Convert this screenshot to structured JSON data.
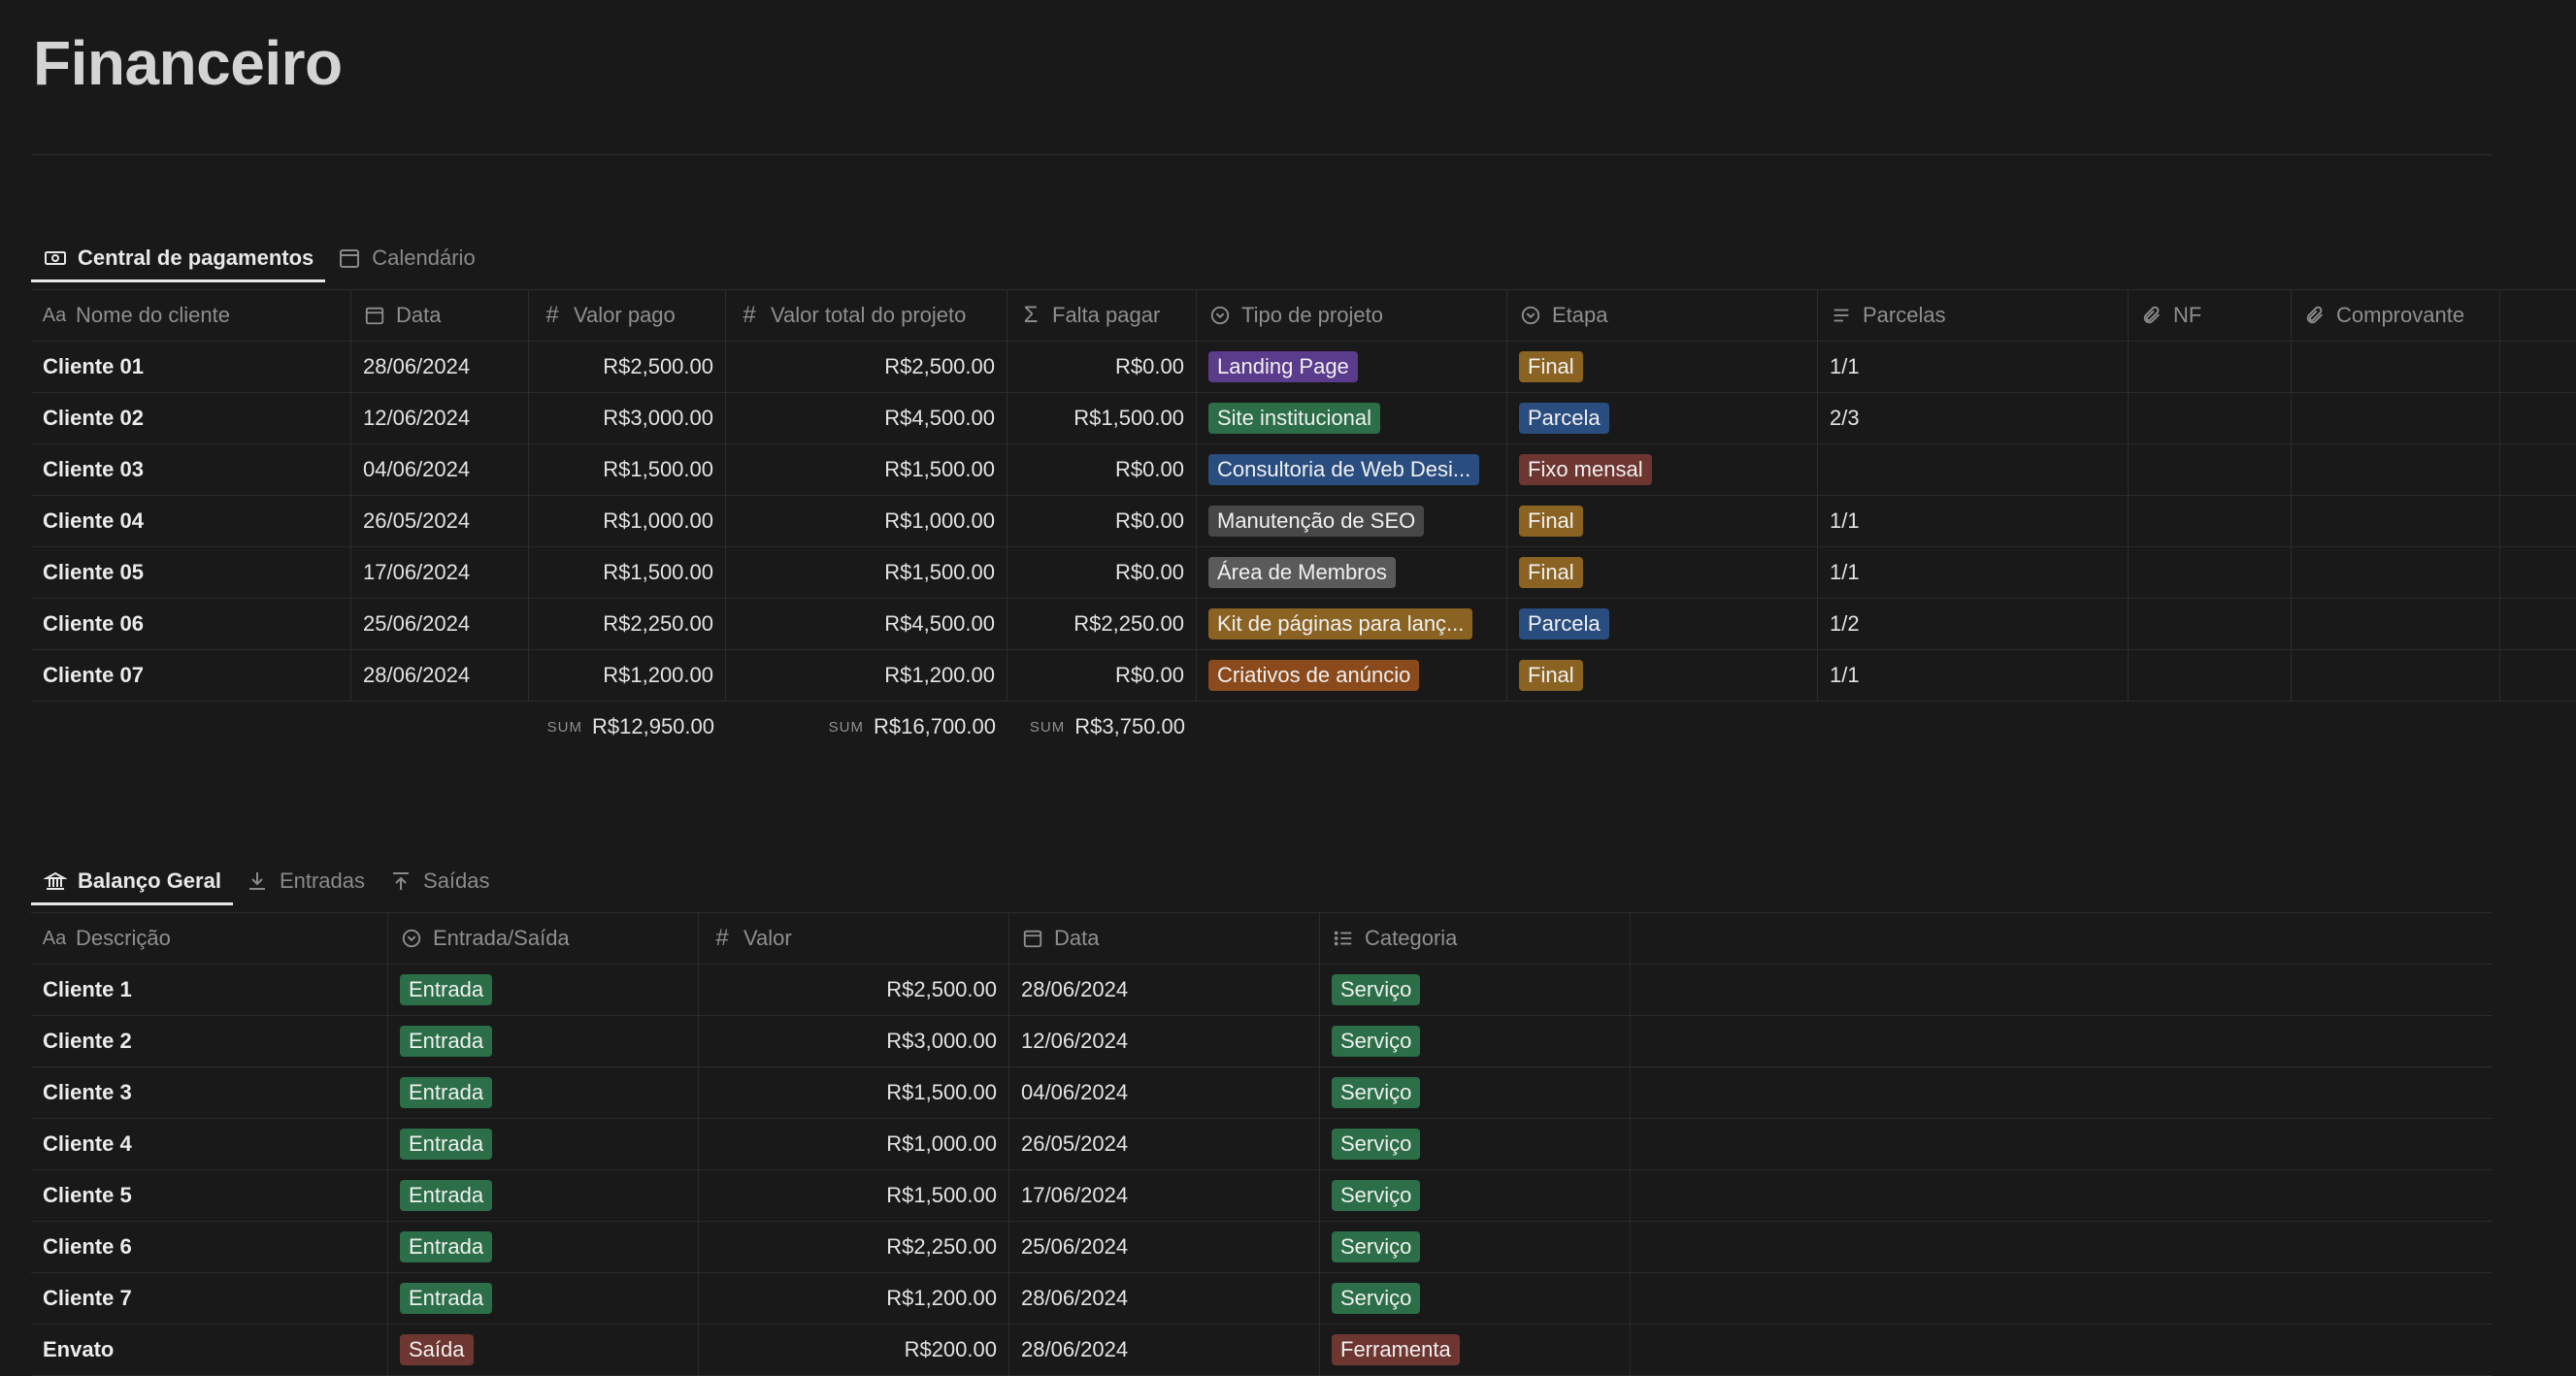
{
  "page": {
    "title": "Financeiro"
  },
  "payments": {
    "tabs": [
      {
        "label": "Central de pagamentos",
        "icon": "money-icon",
        "active": true
      },
      {
        "label": "Calendário",
        "icon": "calendar-icon",
        "active": false
      }
    ],
    "columns": [
      "Nome do cliente",
      "Data",
      "Valor pago",
      "Valor total do projeto",
      "Falta pagar",
      "Tipo de projeto",
      "Etapa",
      "Parcelas",
      "NF",
      "Comprovante"
    ],
    "rows": [
      {
        "name": "Cliente 01",
        "date": "28/06/2024",
        "paid": "R$2,500.00",
        "total": "R$2,500.00",
        "due": "R$0.00",
        "type": "Landing Page",
        "type_color": "#5a3b8c",
        "stage": "Final",
        "stage_color": "#8a6322",
        "parcels": "1/1"
      },
      {
        "name": "Cliente 02",
        "date": "12/06/2024",
        "paid": "R$3,000.00",
        "total": "R$4,500.00",
        "due": "R$1,500.00",
        "type": "Site institucional",
        "type_color": "#2b6e48",
        "stage": "Parcela",
        "stage_color": "#2a4d80",
        "parcels": "2/3"
      },
      {
        "name": "Cliente 03",
        "date": "04/06/2024",
        "paid": "R$1,500.00",
        "total": "R$1,500.00",
        "due": "R$0.00",
        "type": "Consultoria de Web Desi...",
        "type_color": "#2a4d80",
        "stage": "Fixo mensal",
        "stage_color": "#6e3630",
        "parcels": ""
      },
      {
        "name": "Cliente 04",
        "date": "26/05/2024",
        "paid": "R$1,000.00",
        "total": "R$1,000.00",
        "due": "R$0.00",
        "type": "Manutenção de SEO",
        "type_color": "#474747",
        "stage": "Final",
        "stage_color": "#8a6322",
        "parcels": "1/1"
      },
      {
        "name": "Cliente 05",
        "date": "17/06/2024",
        "paid": "R$1,500.00",
        "total": "R$1,500.00",
        "due": "R$0.00",
        "type": "Área de Membros",
        "type_color": "#5a5a5a",
        "stage": "Final",
        "stage_color": "#8a6322",
        "parcels": "1/1"
      },
      {
        "name": "Cliente 06",
        "date": "25/06/2024",
        "paid": "R$2,250.00",
        "total": "R$4,500.00",
        "due": "R$2,250.00",
        "type": "Kit de páginas para lanç...",
        "type_color": "#8a6322",
        "stage": "Parcela",
        "stage_color": "#2a4d80",
        "parcels": "1/2"
      },
      {
        "name": "Cliente 07",
        "date": "28/06/2024",
        "paid": "R$1,200.00",
        "total": "R$1,200.00",
        "due": "R$0.00",
        "type": "Criativos de anúncio",
        "type_color": "#8a4a1c",
        "stage": "Final",
        "stage_color": "#8a6322",
        "parcels": "1/1"
      }
    ],
    "sums": {
      "label": "SUM",
      "paid": "R$12,950.00",
      "total": "R$16,700.00",
      "due": "R$3,750.00"
    }
  },
  "balance": {
    "tabs": [
      {
        "label": "Balanço Geral",
        "icon": "bank-icon",
        "active": true
      },
      {
        "label": "Entradas",
        "icon": "download-icon",
        "active": false
      },
      {
        "label": "Saídas",
        "icon": "upload-icon",
        "active": false
      }
    ],
    "columns": [
      "Descrição",
      "Entrada/Saída",
      "Valor",
      "Data",
      "Categoria"
    ],
    "rows": [
      {
        "desc": "Cliente 1",
        "kind": "Entrada",
        "kind_color": "#2b6e48",
        "value": "R$2,500.00",
        "date": "28/06/2024",
        "cat": "Serviço",
        "cat_color": "#2b6e48"
      },
      {
        "desc": "Cliente 2",
        "kind": "Entrada",
        "kind_color": "#2b6e48",
        "value": "R$3,000.00",
        "date": "12/06/2024",
        "cat": "Serviço",
        "cat_color": "#2b6e48"
      },
      {
        "desc": "Cliente 3",
        "kind": "Entrada",
        "kind_color": "#2b6e48",
        "value": "R$1,500.00",
        "date": "04/06/2024",
        "cat": "Serviço",
        "cat_color": "#2b6e48"
      },
      {
        "desc": "Cliente 4",
        "kind": "Entrada",
        "kind_color": "#2b6e48",
        "value": "R$1,000.00",
        "date": "26/05/2024",
        "cat": "Serviço",
        "cat_color": "#2b6e48"
      },
      {
        "desc": "Cliente 5",
        "kind": "Entrada",
        "kind_color": "#2b6e48",
        "value": "R$1,500.00",
        "date": "17/06/2024",
        "cat": "Serviço",
        "cat_color": "#2b6e48"
      },
      {
        "desc": "Cliente 6",
        "kind": "Entrada",
        "kind_color": "#2b6e48",
        "value": "R$2,250.00",
        "date": "25/06/2024",
        "cat": "Serviço",
        "cat_color": "#2b6e48"
      },
      {
        "desc": "Cliente 7",
        "kind": "Entrada",
        "kind_color": "#2b6e48",
        "value": "R$1,200.00",
        "date": "28/06/2024",
        "cat": "Serviço",
        "cat_color": "#2b6e48"
      },
      {
        "desc": "Envato",
        "kind": "Saída",
        "kind_color": "#6e3630",
        "value": "R$200.00",
        "date": "28/06/2024",
        "cat": "Ferramenta",
        "cat_color": "#6e3630"
      }
    ]
  }
}
